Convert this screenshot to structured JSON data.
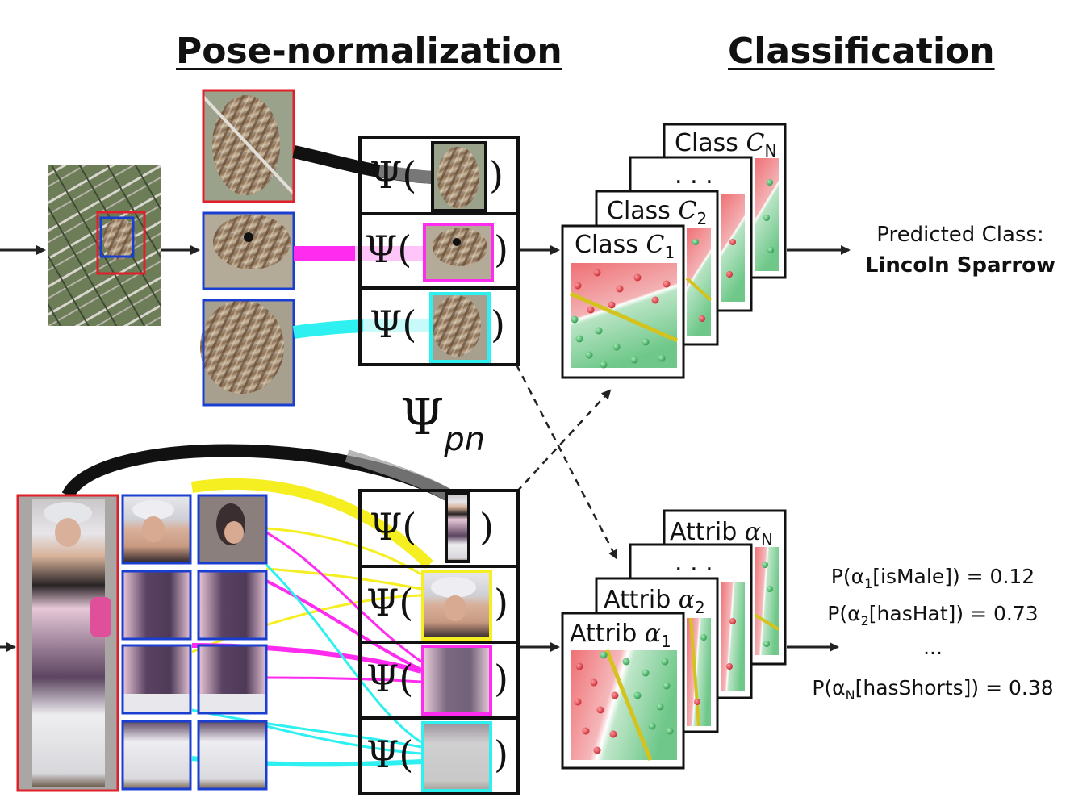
{
  "headers": {
    "pose_normalization": "Pose-normalization",
    "classification": "Classification"
  },
  "symbols": {
    "psi_open": "Ψ(",
    "psi_close": ")",
    "psi_pn_base": "Ψ",
    "psi_pn_sub": "pn"
  },
  "class_cards": [
    {
      "prefix": "Class ",
      "var": "C",
      "sub": "1"
    },
    {
      "prefix": "Class ",
      "var": "C",
      "sub": "2"
    },
    {
      "prefix": "",
      "var": "",
      "sub": "",
      "text": ". . ."
    },
    {
      "prefix": "Class ",
      "var": "C",
      "sub": "N"
    }
  ],
  "attrib_cards": [
    {
      "prefix": "Attrib ",
      "var": "α",
      "sub": "1"
    },
    {
      "prefix": "Attrib ",
      "var": "α",
      "sub": "2"
    },
    {
      "prefix": "",
      "var": "",
      "sub": "",
      "text": ". . ."
    },
    {
      "prefix": "Attrib ",
      "var": "α",
      "sub": "N"
    }
  ],
  "prediction": {
    "label": "Predicted Class:",
    "value": "Lincoln Sparrow"
  },
  "attribute_probs": [
    {
      "pre": "P(α",
      "sub": "1",
      "post": "[isMale]) = 0.12"
    },
    {
      "pre": "P(α",
      "sub": "2",
      "post": "[hasHat]) = 0.73"
    },
    {
      "pre": "...",
      "sub": "",
      "post": ""
    },
    {
      "pre": "P(α",
      "sub": "N",
      "post": "[hasShorts]) = 0.38"
    }
  ],
  "colors": {
    "red_box": "#e0202a",
    "blue_box": "#1a3fd0",
    "magenta": "#ff2cf0",
    "cyan": "#2ef0f0",
    "yellow": "#f5ee20",
    "svm_red": "#ef6f74",
    "svm_green": "#6fc88a",
    "svm_line": "#d4c21e"
  }
}
